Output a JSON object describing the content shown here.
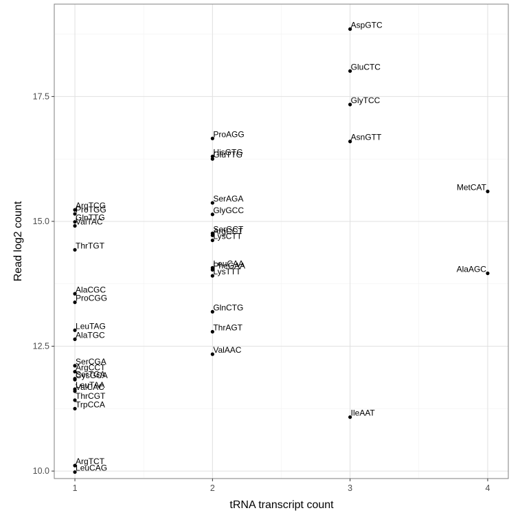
{
  "chart_data": {
    "type": "scatter",
    "title": "",
    "xlabel": "tRNA transcript count",
    "ylabel": "Read log2 count",
    "xlim": [
      0.85,
      4.15
    ],
    "ylim": [
      9.85,
      19.35
    ],
    "x_ticks": [
      1,
      2,
      3,
      4
    ],
    "y_ticks": [
      10.0,
      12.5,
      15.0,
      17.5
    ],
    "x_tick_labels": [
      "1",
      "2",
      "3",
      "4"
    ],
    "y_tick_labels": [
      "10.0",
      "12.5",
      "15.0",
      "17.5"
    ],
    "grid": true,
    "legend": "none",
    "point_color": "#000000",
    "points": [
      {
        "label": "AspGTC",
        "x": 3,
        "y": 18.85
      },
      {
        "label": "GluCTC",
        "x": 3,
        "y": 18.01
      },
      {
        "label": "GlyTCC",
        "x": 3,
        "y": 17.34
      },
      {
        "label": "AsnGTT",
        "x": 3,
        "y": 16.6
      },
      {
        "label": "IleAAT",
        "x": 3,
        "y": 11.08
      },
      {
        "label": "MetCAT",
        "x": 4,
        "y": 15.6
      },
      {
        "label": "AlaAGC",
        "x": 4,
        "y": 13.96
      },
      {
        "label": "ProAGG",
        "x": 2,
        "y": 16.66
      },
      {
        "label": "HisGTG",
        "x": 2,
        "y": 16.3
      },
      {
        "label": "GluTTG",
        "x": 2,
        "y": 16.25
      },
      {
        "label": "SerAGA",
        "x": 2,
        "y": 15.37
      },
      {
        "label": "GlyGCC",
        "x": 2,
        "y": 15.14
      },
      {
        "label": "SerGCT",
        "x": 2,
        "y": 14.76
      },
      {
        "label": "ArgCCT",
        "x": 2,
        "y": 14.72
      },
      {
        "label": "LysCTT",
        "x": 2,
        "y": 14.62
      },
      {
        "label": "LeuCAA",
        "x": 2,
        "y": 14.07
      },
      {
        "label": "PheGAA",
        "x": 2,
        "y": 14.03
      },
      {
        "label": "LysTTT",
        "x": 2,
        "y": 13.91
      },
      {
        "label": "GlnCTG",
        "x": 2,
        "y": 13.19
      },
      {
        "label": "ThrAGT",
        "x": 2,
        "y": 12.79
      },
      {
        "label": "ValAAC",
        "x": 2,
        "y": 12.34
      },
      {
        "label": "ArgTCG",
        "x": 1,
        "y": 15.23
      },
      {
        "label": "ProTGG",
        "x": 1,
        "y": 15.15
      },
      {
        "label": "GlnTTG",
        "x": 1,
        "y": 14.99
      },
      {
        "label": "ValTAC",
        "x": 1,
        "y": 14.91
      },
      {
        "label": "ThrTGT",
        "x": 1,
        "y": 14.43
      },
      {
        "label": "AlaCGC",
        "x": 1,
        "y": 13.55
      },
      {
        "label": "ProCGG",
        "x": 1,
        "y": 13.38
      },
      {
        "label": "LeuTAG",
        "x": 1,
        "y": 12.82
      },
      {
        "label": "AlaTGC",
        "x": 1,
        "y": 12.64
      },
      {
        "label": "SerCGA",
        "x": 1,
        "y": 12.11
      },
      {
        "label": "ArgCCT",
        "x": 1,
        "y": 11.99
      },
      {
        "label": "SerTGA",
        "x": 1,
        "y": 11.85
      },
      {
        "label": "CysGCA",
        "x": 1,
        "y": 11.83
      },
      {
        "label": "LeuTAA",
        "x": 1,
        "y": 11.64
      },
      {
        "label": "ValCAC",
        "x": 1,
        "y": 11.6
      },
      {
        "label": "ThrCGT",
        "x": 1,
        "y": 11.42
      },
      {
        "label": "TrpCCA",
        "x": 1,
        "y": 11.25
      },
      {
        "label": "ArgTCT",
        "x": 1,
        "y": 10.11
      },
      {
        "label": "LeuCAG",
        "x": 1,
        "y": 9.98
      }
    ]
  }
}
